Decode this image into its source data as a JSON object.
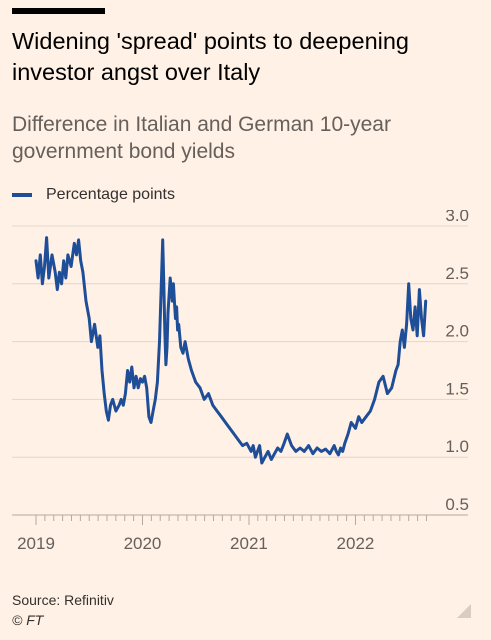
{
  "header": {
    "title": "Widening 'spread' points to deepening investor angst over Italy",
    "subtitle": "Difference in Italian and German 10-year government bond yields"
  },
  "footer": {
    "source": "Source: Refinitiv",
    "credit": "© FT"
  },
  "colors": {
    "background": "#FFF1E5",
    "series": "#1F4E99",
    "grid": "#E3D6CA",
    "text": "#66605C"
  },
  "chart_data": {
    "type": "line",
    "title": "Widening 'spread' points to deepening investor angst over Italy",
    "subtitle": "Difference in Italian and German 10-year government bond yields",
    "ylim": [
      0.5,
      3.0
    ],
    "y_ticks": [
      "3.0",
      "2.5",
      "2.0",
      "1.5",
      "1.0",
      "0.5"
    ],
    "y_tick_values": [
      3.0,
      2.5,
      2.0,
      1.5,
      1.0,
      0.5
    ],
    "y_axis_side": "right",
    "xlim": [
      2019.0,
      2022.7
    ],
    "x_ticks": [
      "2019",
      "2020",
      "2021",
      "2022"
    ],
    "x_tick_values": [
      2019,
      2020,
      2021,
      2022
    ],
    "grid": true,
    "legend_position": "top-left",
    "series": [
      {
        "name": "Percentage points",
        "color": "#1F4E99",
        "x": [
          2019.0,
          2019.02,
          2019.04,
          2019.06,
          2019.08,
          2019.1,
          2019.12,
          2019.15,
          2019.18,
          2019.2,
          2019.22,
          2019.24,
          2019.26,
          2019.28,
          2019.3,
          2019.33,
          2019.36,
          2019.38,
          2019.4,
          2019.42,
          2019.44,
          2019.47,
          2019.5,
          2019.52,
          2019.55,
          2019.58,
          2019.6,
          2019.62,
          2019.64,
          2019.66,
          2019.68,
          2019.7,
          2019.72,
          2019.75,
          2019.78,
          2019.8,
          2019.82,
          2019.84,
          2019.86,
          2019.88,
          2019.9,
          2019.92,
          2019.94,
          2019.96,
          2019.98,
          2020.0,
          2020.02,
          2020.04,
          2020.06,
          2020.08,
          2020.1,
          2020.12,
          2020.14,
          2020.16,
          2020.18,
          2020.19,
          2020.2,
          2020.21,
          2020.22,
          2020.23,
          2020.24,
          2020.26,
          2020.28,
          2020.29,
          2020.3,
          2020.31,
          2020.32,
          2020.33,
          2020.34,
          2020.36,
          2020.38,
          2020.4,
          2020.43,
          2020.46,
          2020.5,
          2020.54,
          2020.58,
          2020.62,
          2020.66,
          2020.7,
          2020.74,
          2020.78,
          2020.82,
          2020.86,
          2020.9,
          2020.94,
          2020.98,
          2021.02,
          2021.04,
          2021.06,
          2021.08,
          2021.1,
          2021.12,
          2021.15,
          2021.18,
          2021.21,
          2021.24,
          2021.27,
          2021.3,
          2021.33,
          2021.36,
          2021.4,
          2021.44,
          2021.48,
          2021.52,
          2021.56,
          2021.6,
          2021.64,
          2021.68,
          2021.72,
          2021.76,
          2021.8,
          2021.82,
          2021.84,
          2021.86,
          2021.88,
          2021.9,
          2021.93,
          2021.96,
          2022.0,
          2022.03,
          2022.06,
          2022.1,
          2022.14,
          2022.18,
          2022.22,
          2022.26,
          2022.3,
          2022.34,
          2022.38,
          2022.4,
          2022.42,
          2022.44,
          2022.46,
          2022.48,
          2022.5,
          2022.52,
          2022.54,
          2022.56,
          2022.58,
          2022.6,
          2022.62,
          2022.64,
          2022.66
        ],
        "values": [
          2.7,
          2.55,
          2.75,
          2.5,
          2.65,
          2.9,
          2.55,
          2.75,
          2.6,
          2.45,
          2.6,
          2.5,
          2.7,
          2.55,
          2.75,
          2.65,
          2.85,
          2.75,
          2.88,
          2.7,
          2.6,
          2.35,
          2.2,
          2.0,
          2.15,
          1.95,
          2.05,
          1.75,
          1.55,
          1.4,
          1.32,
          1.45,
          1.5,
          1.4,
          1.45,
          1.5,
          1.45,
          1.55,
          1.75,
          1.65,
          1.78,
          1.6,
          1.7,
          1.6,
          1.68,
          1.65,
          1.7,
          1.6,
          1.35,
          1.3,
          1.4,
          1.5,
          1.65,
          2.0,
          2.6,
          2.88,
          2.5,
          2.1,
          1.8,
          1.95,
          2.25,
          2.55,
          2.35,
          2.5,
          2.35,
          2.2,
          2.3,
          2.1,
          2.15,
          1.95,
          1.9,
          2.0,
          1.85,
          1.75,
          1.65,
          1.6,
          1.5,
          1.55,
          1.45,
          1.4,
          1.35,
          1.3,
          1.25,
          1.2,
          1.15,
          1.1,
          1.12,
          1.05,
          1.1,
          1.0,
          1.05,
          1.1,
          0.95,
          1.0,
          1.05,
          0.98,
          1.03,
          1.08,
          1.05,
          1.12,
          1.2,
          1.1,
          1.05,
          1.08,
          1.05,
          1.1,
          1.03,
          1.08,
          1.05,
          1.07,
          1.03,
          1.1,
          1.05,
          1.02,
          1.08,
          1.05,
          1.12,
          1.2,
          1.3,
          1.25,
          1.35,
          1.3,
          1.35,
          1.4,
          1.5,
          1.65,
          1.7,
          1.55,
          1.6,
          1.75,
          1.8,
          2.0,
          2.1,
          1.95,
          2.15,
          2.5,
          2.2,
          2.1,
          2.3,
          2.05,
          2.45,
          2.2,
          2.05,
          2.35
        ]
      }
    ]
  }
}
